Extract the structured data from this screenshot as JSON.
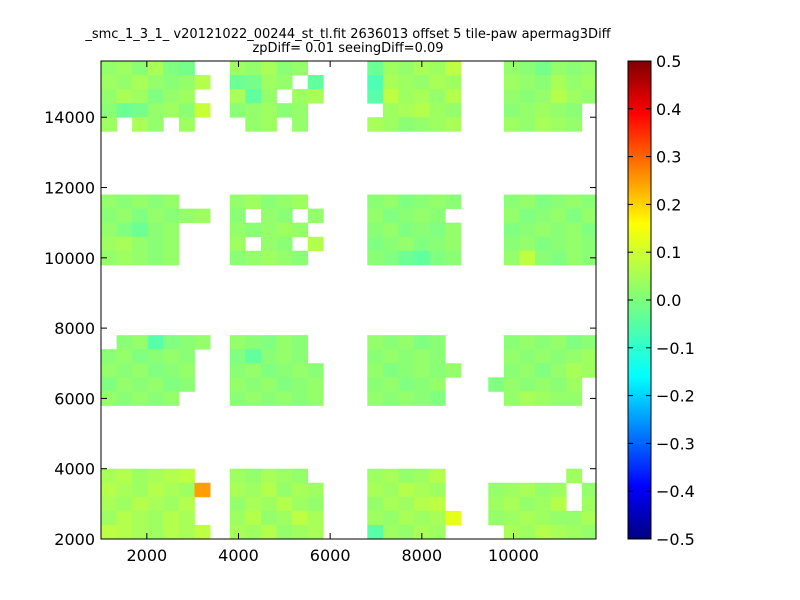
{
  "chart_data": {
    "type": "heatmap",
    "title_lines": [
      "_smc_1_3_1_ v20121022_00244_st_tl.fit 2636013 offset 5 tile-paw apermag3Diff",
      "zpDiff= 0.01 seeingDiff=0.09"
    ],
    "xlabel": "",
    "ylabel": "",
    "x_range": [
      1000,
      11800
    ],
    "y_range": [
      2000,
      15600
    ],
    "x_ticks": [
      2000,
      4000,
      6000,
      8000,
      10000
    ],
    "x_tick_labels": [
      "2000",
      "4000",
      "6000",
      "8000",
      "10000"
    ],
    "y_ticks": [
      2000,
      4000,
      6000,
      8000,
      10000,
      12000,
      14000
    ],
    "y_tick_labels": [
      "2000",
      "4000",
      "6000",
      "8000",
      "10000",
      "12000",
      "14000"
    ],
    "colorbar": {
      "colormap": "jet",
      "range": [
        -0.5,
        0.5
      ],
      "ticks": [
        0.5,
        0.4,
        0.3,
        0.2,
        0.1,
        0.0,
        -0.1,
        -0.2,
        -0.3,
        -0.4,
        -0.5
      ],
      "tick_labels": [
        "0.5",
        "0.4",
        "0.3",
        "0.2",
        "0.1",
        "0.0",
        "−0.1",
        "−0.2",
        "−0.3",
        "−0.4",
        "−0.5"
      ]
    },
    "cell_size": [
      340,
      400
    ],
    "cells_note": "columns of cell x-centres (data units) per block group; each row lists [y_center, value] pairs",
    "blocks": [
      {
        "x": [
          1170,
          1510,
          1850,
          2190,
          2530,
          2870,
          3210
        ],
        "rows": [
          [
            15400,
            [
              0.02,
              0.03,
              0.01,
              0.04,
              0.0,
              -0.01,
              null
            ]
          ],
          [
            15000,
            [
              0.03,
              0.02,
              0.04,
              0.02,
              0.01,
              0.02,
              0.05
            ]
          ],
          [
            14600,
            [
              0.02,
              0.04,
              0.03,
              0.0,
              0.02,
              0.03,
              null
            ]
          ],
          [
            14200,
            [
              0.01,
              -0.02,
              -0.01,
              0.02,
              0.03,
              0.01,
              0.07
            ]
          ],
          [
            13800,
            [
              0.03,
              null,
              0.04,
              0.02,
              null,
              0.03,
              null
            ]
          ],
          [
            11600,
            [
              0.02,
              0.01,
              0.02,
              0.01,
              0.02,
              null,
              null
            ]
          ],
          [
            11200,
            [
              0.01,
              0.02,
              0.0,
              0.02,
              0.01,
              0.02,
              0.03
            ]
          ],
          [
            10800,
            [
              0.02,
              0.0,
              -0.02,
              0.01,
              0.02,
              null,
              null
            ]
          ],
          [
            10400,
            [
              0.03,
              0.04,
              0.02,
              0.01,
              0.02,
              null,
              null
            ]
          ],
          [
            10000,
            [
              0.02,
              0.03,
              0.02,
              0.01,
              0.02,
              null,
              null
            ]
          ],
          [
            7600,
            [
              null,
              0.01,
              0.02,
              -0.04,
              0.0,
              0.01,
              0.02
            ]
          ],
          [
            7200,
            [
              0.01,
              0.02,
              0.0,
              0.01,
              0.02,
              0.01,
              null
            ]
          ],
          [
            6800,
            [
              0.02,
              0.01,
              0.02,
              0.0,
              0.01,
              0.02,
              null
            ]
          ],
          [
            6400,
            [
              0.0,
              0.02,
              0.01,
              0.02,
              0.0,
              0.01,
              null
            ]
          ],
          [
            6000,
            [
              0.02,
              0.01,
              0.02,
              0.01,
              0.02,
              null,
              null
            ]
          ],
          [
            3800,
            [
              0.04,
              0.05,
              0.03,
              0.04,
              0.05,
              0.06,
              null
            ]
          ],
          [
            3400,
            [
              0.05,
              0.04,
              0.03,
              0.05,
              0.04,
              0.03,
              0.22
            ]
          ],
          [
            3000,
            [
              0.04,
              0.03,
              0.05,
              0.04,
              0.03,
              0.05,
              null
            ]
          ],
          [
            2600,
            [
              0.03,
              0.05,
              0.04,
              0.03,
              0.05,
              0.04,
              null
            ]
          ],
          [
            2200,
            [
              0.06,
              0.05,
              0.04,
              0.03,
              0.05,
              0.04,
              0.06
            ]
          ]
        ]
      },
      {
        "x": [
          3980,
          4320,
          4660,
          5000,
          5340,
          5680
        ],
        "rows": [
          [
            15400,
            [
              0.03,
              0.02,
              0.04,
              0.01,
              0.02,
              null
            ]
          ],
          [
            15000,
            [
              -0.02,
              -0.01,
              0.03,
              0.02,
              null,
              -0.03
            ]
          ],
          [
            14600,
            [
              0.04,
              -0.03,
              0.02,
              null,
              0.03,
              0.04
            ]
          ],
          [
            14200,
            [
              0.01,
              0.02,
              0.03,
              0.01,
              0.02,
              null
            ]
          ],
          [
            13800,
            [
              null,
              0.02,
              0.03,
              null,
              0.02,
              null
            ]
          ],
          [
            11600,
            [
              0.02,
              0.03,
              0.01,
              0.02,
              0.03,
              null
            ]
          ],
          [
            11200,
            [
              0.01,
              null,
              0.02,
              0.01,
              null,
              0.02
            ]
          ],
          [
            10800,
            [
              0.02,
              0.01,
              0.02,
              0.03,
              0.02,
              null
            ]
          ],
          [
            10400,
            [
              0.03,
              null,
              0.02,
              0.01,
              null,
              0.05
            ]
          ],
          [
            10000,
            [
              0.01,
              0.02,
              0.03,
              0.02,
              0.01,
              null
            ]
          ],
          [
            7600,
            [
              0.02,
              0.01,
              0.0,
              0.02,
              0.01,
              null
            ]
          ],
          [
            7200,
            [
              0.0,
              -0.03,
              0.01,
              0.02,
              0.01,
              null
            ]
          ],
          [
            6800,
            [
              0.01,
              0.02,
              0.0,
              0.01,
              0.02,
              0.01
            ]
          ],
          [
            6400,
            [
              0.02,
              0.01,
              0.02,
              0.0,
              0.01,
              0.02
            ]
          ],
          [
            6000,
            [
              0.01,
              0.02,
              0.01,
              0.02,
              0.01,
              0.02
            ]
          ],
          [
            3800,
            [
              0.03,
              0.02,
              0.04,
              0.03,
              0.02,
              null
            ]
          ],
          [
            3400,
            [
              0.04,
              0.03,
              0.05,
              0.02,
              0.04,
              0.03
            ]
          ],
          [
            3000,
            [
              0.02,
              0.04,
              0.03,
              0.05,
              0.03,
              0.02
            ]
          ],
          [
            2600,
            [
              0.03,
              0.05,
              0.02,
              0.03,
              0.06,
              0.04
            ]
          ],
          [
            2200,
            [
              0.04,
              0.03,
              0.05,
              0.02,
              0.03,
              0.04
            ]
          ]
        ]
      },
      {
        "x": [
          6980,
          7320,
          7660,
          8000,
          8340,
          8680
        ],
        "rows": [
          [
            15400,
            [
              -0.02,
              0.03,
              0.02,
              0.04,
              0.03,
              0.06
            ]
          ],
          [
            15000,
            [
              -0.05,
              0.04,
              0.03,
              0.02,
              0.04,
              0.03
            ]
          ],
          [
            14600,
            [
              -0.04,
              0.06,
              0.03,
              0.04,
              0.02,
              0.05
            ]
          ],
          [
            14200,
            [
              null,
              0.03,
              0.04,
              0.05,
              0.03,
              0.02
            ]
          ],
          [
            13800,
            [
              0.04,
              0.03,
              0.01,
              0.02,
              0.03,
              0.04
            ]
          ],
          [
            11600,
            [
              0.01,
              0.02,
              0.0,
              0.01,
              0.02,
              0.01
            ]
          ],
          [
            11200,
            [
              0.02,
              0.0,
              0.01,
              0.02,
              0.01,
              null
            ]
          ],
          [
            10800,
            [
              0.01,
              0.02,
              0.0,
              0.01,
              0.0,
              0.02
            ]
          ],
          [
            10400,
            [
              0.0,
              0.01,
              0.02,
              0.0,
              0.01,
              0.02
            ]
          ],
          [
            10000,
            [
              0.01,
              0.0,
              -0.02,
              -0.03,
              0.0,
              0.01
            ]
          ],
          [
            7600,
            [
              0.02,
              0.01,
              0.02,
              0.0,
              0.01,
              null
            ]
          ],
          [
            7200,
            [
              0.01,
              0.02,
              0.01,
              0.02,
              0.01,
              null
            ]
          ],
          [
            6800,
            [
              0.02,
              0.0,
              0.01,
              0.02,
              0.01,
              0.02
            ]
          ],
          [
            6400,
            [
              0.01,
              0.02,
              0.0,
              0.01,
              0.02,
              null
            ]
          ],
          [
            6000,
            [
              0.02,
              0.01,
              0.02,
              0.01,
              0.0,
              null
            ]
          ],
          [
            3800,
            [
              0.03,
              0.04,
              0.02,
              0.03,
              0.05,
              null
            ]
          ],
          [
            3400,
            [
              0.04,
              0.03,
              0.05,
              0.04,
              0.03,
              null
            ]
          ],
          [
            3000,
            [
              0.02,
              0.04,
              0.03,
              0.05,
              0.06,
              null
            ]
          ],
          [
            2600,
            [
              0.03,
              0.02,
              0.04,
              0.03,
              0.04,
              0.1
            ]
          ],
          [
            2200,
            [
              -0.04,
              0.03,
              0.02,
              0.04,
              0.03,
              null
            ]
          ]
        ]
      },
      {
        "x": [
          9620,
          9960,
          10300,
          10640,
          10980,
          11320,
          11660
        ],
        "rows": [
          [
            15400,
            [
              null,
              0.02,
              0.01,
              -0.01,
              0.02,
              0.01,
              0.02
            ]
          ],
          [
            15000,
            [
              null,
              0.03,
              0.02,
              0.01,
              0.04,
              0.02,
              0.03
            ]
          ],
          [
            14600,
            [
              null,
              0.02,
              0.01,
              0.02,
              0.05,
              0.03,
              0.02
            ]
          ],
          [
            14200,
            [
              null,
              0.01,
              0.02,
              0.03,
              0.02,
              0.01,
              null
            ]
          ],
          [
            13800,
            [
              null,
              0.03,
              0.02,
              0.04,
              0.03,
              0.02,
              null
            ]
          ],
          [
            11600,
            [
              null,
              0.01,
              0.02,
              0.0,
              0.01,
              0.02,
              0.01
            ]
          ],
          [
            11200,
            [
              null,
              0.02,
              0.0,
              0.01,
              0.02,
              0.0,
              0.02
            ]
          ],
          [
            10800,
            [
              null,
              0.0,
              0.01,
              0.02,
              0.01,
              0.02,
              0.0
            ]
          ],
          [
            10400,
            [
              null,
              0.01,
              0.02,
              0.0,
              0.01,
              0.02,
              0.01
            ]
          ],
          [
            10000,
            [
              null,
              0.02,
              0.06,
              0.01,
              0.0,
              0.02,
              0.01
            ]
          ],
          [
            7600,
            [
              null,
              0.01,
              0.02,
              0.01,
              0.02,
              0.0,
              0.01
            ]
          ],
          [
            7200,
            [
              null,
              0.02,
              0.01,
              0.02,
              0.01,
              0.02,
              0.03
            ]
          ],
          [
            6800,
            [
              null,
              0.01,
              0.02,
              0.0,
              0.02,
              0.04,
              0.03
            ]
          ],
          [
            6400,
            [
              0.0,
              0.02,
              0.01,
              0.02,
              0.01,
              0.03,
              null
            ]
          ],
          [
            6000,
            [
              null,
              0.02,
              0.04,
              0.03,
              0.02,
              0.02,
              null
            ]
          ],
          [
            3800,
            [
              null,
              null,
              null,
              null,
              null,
              0.03,
              null
            ]
          ],
          [
            3400,
            [
              0.02,
              0.03,
              0.04,
              0.02,
              0.03,
              null,
              0.02
            ]
          ],
          [
            3000,
            [
              0.03,
              0.04,
              0.02,
              0.03,
              0.05,
              null,
              0.03
            ]
          ],
          [
            2600,
            [
              0.02,
              0.03,
              0.04,
              0.03,
              0.02,
              0.02,
              0.04
            ]
          ],
          [
            2200,
            [
              null,
              0.04,
              0.03,
              0.05,
              0.04,
              0.03,
              0.02
            ]
          ]
        ]
      }
    ]
  }
}
